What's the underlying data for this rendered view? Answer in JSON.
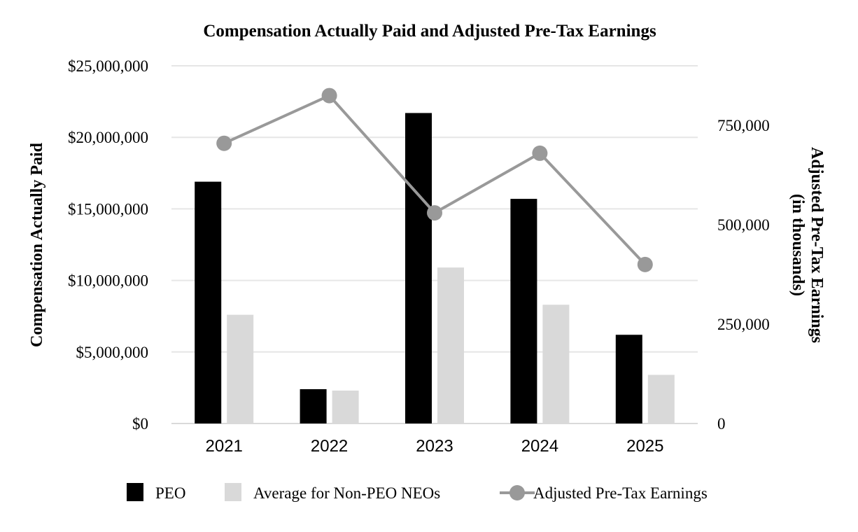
{
  "chart_data": {
    "type": "bar",
    "title": "Compensation Actually Paid and Adjusted Pre-Tax Earnings",
    "categories": [
      "2021",
      "2022",
      "2023",
      "2024",
      "2025"
    ],
    "series": [
      {
        "name": "PEO",
        "kind": "bar",
        "axis": "left",
        "color": "#000000",
        "values": [
          16900000,
          2400000,
          21700000,
          15700000,
          6200000
        ]
      },
      {
        "name": "Average for Non-PEO NEOs",
        "kind": "bar",
        "axis": "left",
        "color": "#d9d9d9",
        "values": [
          7600000,
          2300000,
          10900000,
          8300000,
          3400000
        ]
      },
      {
        "name": "Adjusted Pre-Tax Earnings",
        "kind": "line",
        "axis": "right",
        "color": "#999999",
        "values": [
          705000,
          825000,
          530000,
          680000,
          400000
        ]
      }
    ],
    "y_left": {
      "label": "Compensation Actually Paid",
      "range": [
        0,
        25000000
      ],
      "ticks": [
        0,
        5000000,
        10000000,
        15000000,
        20000000,
        25000000
      ],
      "tick_labels": [
        "$0",
        "$5,000,000",
        "$10,000,000",
        "$15,000,000",
        "$20,000,000",
        "$25,000,000"
      ]
    },
    "y_right": {
      "label_line1": "Adjusted Pre-Tax Earnings",
      "label_line2": "(in thousands)",
      "range": [
        0,
        900000
      ],
      "ticks": [
        0,
        250000,
        500000,
        750000
      ],
      "tick_labels": [
        "0",
        "250,000",
        "500,000",
        "750,000"
      ]
    },
    "grid": true,
    "legend_position": "bottom"
  }
}
